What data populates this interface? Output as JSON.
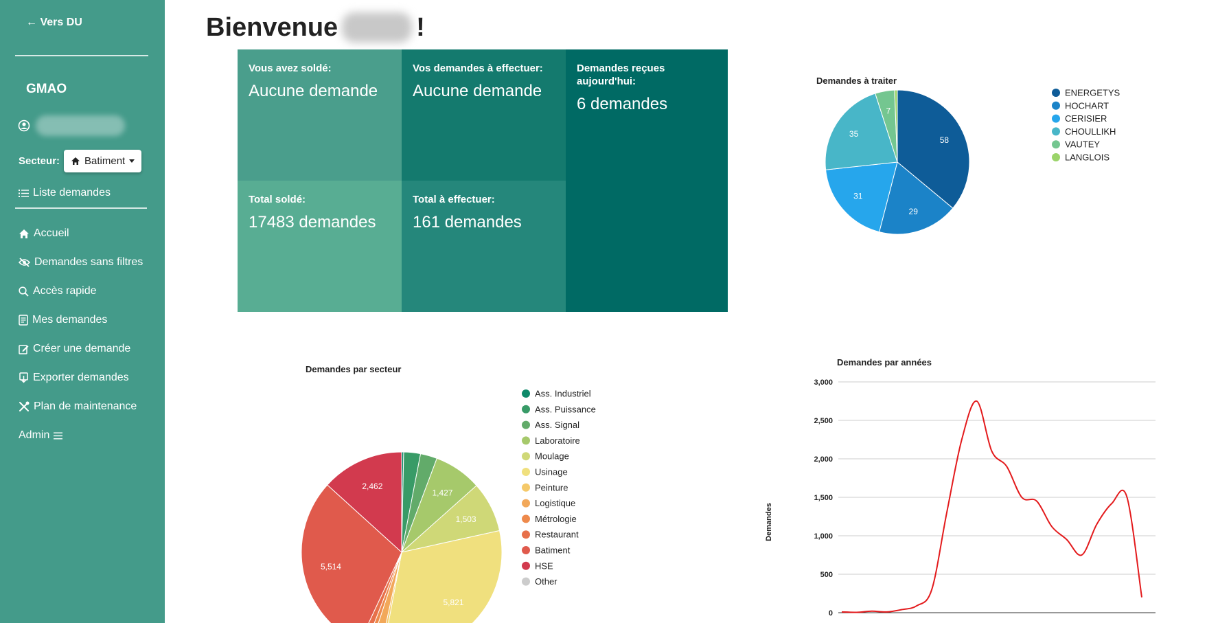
{
  "sidebar": {
    "back_label": "Vers DU",
    "app_title": "GMAO",
    "sector_label": "Secteur:",
    "sector_value": "Batiment",
    "list_label": "Liste demandes",
    "nav": [
      {
        "label": "Accueil",
        "icon": "home-icon"
      },
      {
        "label": "Demandes sans filtres",
        "icon": "eye-slash-icon"
      },
      {
        "label": "Accès rapide",
        "icon": "search-icon"
      },
      {
        "label": "Mes demandes",
        "icon": "document-list-icon"
      },
      {
        "label": "Créer une demande",
        "icon": "edit-icon"
      },
      {
        "label": "Exporter demandes",
        "icon": "download-icon"
      },
      {
        "label": "Plan de maintenance",
        "icon": "tools-icon"
      },
      {
        "label": "Admin",
        "icon": "menu-icon"
      }
    ]
  },
  "header": {
    "greeting_prefix": "Bienvenue",
    "greeting_suffix": "!"
  },
  "tiles": [
    {
      "label": "Vous avez soldé:",
      "value": "Aucune demande",
      "color": "#4a9e8c"
    },
    {
      "label": "Vos demandes à effectuer:",
      "value": "Aucune demande",
      "color": "#147a6e"
    },
    {
      "label": "Demandes reçues aujourd'hui:",
      "value": "6 demandes",
      "color": "#006a64"
    },
    {
      "label": "Total soldé:",
      "value": "17483 demandes",
      "color": "#58ad93"
    },
    {
      "label": "Total à effectuer:",
      "value": "161 demandes",
      "color": "#25877b"
    }
  ],
  "chart_data": [
    {
      "type": "pie",
      "title": "Demandes à traiter",
      "legend_position": "right",
      "slices": [
        {
          "name": "ENERGETYS",
          "value": 58,
          "color": "#0e5c98"
        },
        {
          "name": "HOCHART",
          "value": 29,
          "color": "#1b83c8"
        },
        {
          "name": "CERISIER",
          "value": 31,
          "color": "#26a6ec"
        },
        {
          "name": "CHOULLIKH",
          "value": 35,
          "color": "#48b6c8"
        },
        {
          "name": "VAUTEY",
          "value": 7,
          "color": "#74c690"
        },
        {
          "name": "LANGLOIS",
          "value": 1,
          "color": "#9bd46a"
        }
      ]
    },
    {
      "type": "pie",
      "title": "Demandes par secteur",
      "legend_position": "right",
      "slices": [
        {
          "name": "Ass. Industriel",
          "value": 60,
          "color": "#0e8a6a",
          "label": ""
        },
        {
          "name": "Ass. Puissance",
          "value": 500,
          "color": "#389b67",
          "label": ""
        },
        {
          "name": "Ass. Signal",
          "value": 500,
          "color": "#62ab6a",
          "label": ""
        },
        {
          "name": "Laboratoire",
          "value": 1427,
          "color": "#a6c96b",
          "label": "1,427"
        },
        {
          "name": "Moulage",
          "value": 1503,
          "color": "#cfd877",
          "label": "1,503"
        },
        {
          "name": "Usinage",
          "value": 5821,
          "color": "#f0e07e",
          "label": "5,821"
        },
        {
          "name": "Peinture",
          "value": 90,
          "color": "#f5c96a",
          "label": ""
        },
        {
          "name": "Logistique",
          "value": 300,
          "color": "#f2a859",
          "label": ""
        },
        {
          "name": "Métrologie",
          "value": 150,
          "color": "#ee8a4c",
          "label": ""
        },
        {
          "name": "Restaurant",
          "value": 200,
          "color": "#e7704a",
          "label": ""
        },
        {
          "name": "Batiment",
          "value": 5514,
          "color": "#e05a4c",
          "label": "5,514"
        },
        {
          "name": "HSE",
          "value": 2462,
          "color": "#d23a4e",
          "label": "2,462"
        },
        {
          "name": "Other",
          "value": 0,
          "color": "#cccccc",
          "label": ""
        }
      ]
    },
    {
      "type": "line",
      "title": "Demandes par années",
      "ylabel": "Demandes",
      "ylim": [
        0,
        3000
      ],
      "yticks": [
        "0",
        "500",
        "1,000",
        "1,500",
        "2,000",
        "2,500",
        "3,000"
      ],
      "grid": true,
      "series": [
        {
          "color": "#e31a1c",
          "values": [
            10,
            5,
            20,
            10,
            40,
            90,
            300,
            1300,
            2250,
            2750,
            2100,
            1900,
            1500,
            1450,
            1120,
            950,
            750,
            1150,
            1420,
            1510,
            200
          ]
        }
      ]
    }
  ]
}
